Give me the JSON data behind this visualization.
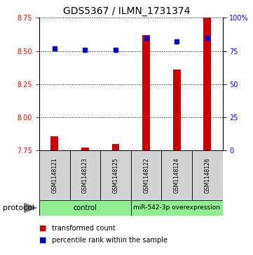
{
  "title": "GDS5367 / ILMN_1731374",
  "samples": [
    "GSM1148121",
    "GSM1148123",
    "GSM1148125",
    "GSM1148122",
    "GSM1148124",
    "GSM1148126"
  ],
  "transformed_count": [
    7.855,
    7.77,
    7.8,
    8.62,
    8.36,
    8.75
  ],
  "percentile_rank": [
    77,
    76,
    76,
    85,
    82,
    85
  ],
  "ylim_left": [
    7.75,
    8.75
  ],
  "ylim_right": [
    0,
    100
  ],
  "yticks_left": [
    7.75,
    8.0,
    8.25,
    8.5,
    8.75
  ],
  "yticks_right": [
    0,
    25,
    50,
    75,
    100
  ],
  "ytick_labels_right": [
    "0",
    "25",
    "50",
    "75",
    "100%"
  ],
  "bar_color": "#cc0000",
  "dot_color": "#0000cc",
  "control_label": "control",
  "treatment_label": "miR-542-3p overexpression",
  "protocol_label": "protocol",
  "legend_red_label": "transformed count",
  "legend_blue_label": "percentile rank within the sample",
  "group_color": "#90ee90",
  "title_fontsize": 10,
  "tick_fontsize": 7,
  "sample_fontsize": 5.5,
  "legend_fontsize": 7,
  "protocol_fontsize": 8,
  "group_fontsize": 7
}
